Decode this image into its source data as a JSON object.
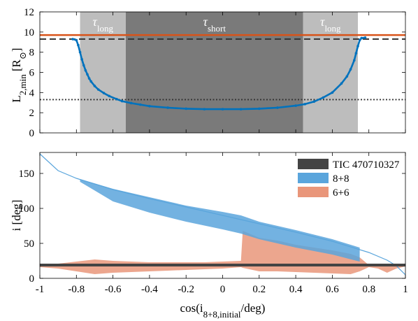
{
  "chart_data": [
    {
      "type": "line",
      "xlim": [
        -1,
        1
      ],
      "ylim": [
        0,
        12
      ],
      "ylabel_main": "L",
      "ylabel_sub": "2,min",
      "ylabel_unit_open": " [R",
      "ylabel_unit_close": "]",
      "yticks": [
        "0",
        "2",
        "4",
        "6",
        "8",
        "10",
        "12"
      ],
      "xticks_shown": false,
      "regions": [
        {
          "label_main": "τ",
          "label_sub": "long",
          "x0": -0.78,
          "x1": -0.53,
          "color": "#bdbdbd"
        },
        {
          "label_main": "τ",
          "label_sub": "short",
          "x0": -0.53,
          "x1": 0.44,
          "color": "#7a7a7a"
        },
        {
          "label_main": "τ",
          "label_sub": "long",
          "x0": 0.44,
          "x1": 0.74,
          "color": "#bdbdbd"
        }
      ],
      "reference_lines": [
        {
          "style": "solid",
          "y": 9.7,
          "color": "#d95319"
        },
        {
          "style": "dashed",
          "y": 9.3,
          "color": "#333333"
        },
        {
          "style": "dotted",
          "y": 3.3,
          "color": "#333333"
        }
      ],
      "series": [
        {
          "color": "#0072bd",
          "x": [
            -0.82,
            -0.8,
            -0.79,
            -0.78,
            -0.77,
            -0.76,
            -0.75,
            -0.74,
            -0.73,
            -0.72,
            -0.7,
            -0.68,
            -0.65,
            -0.62,
            -0.58,
            -0.55,
            -0.5,
            -0.45,
            -0.4,
            -0.3,
            -0.2,
            -0.1,
            0.0,
            0.1,
            0.2,
            0.3,
            0.4,
            0.45,
            0.5,
            0.55,
            0.6,
            0.65,
            0.68,
            0.7,
            0.72,
            0.73,
            0.74,
            0.75,
            0.76,
            0.78
          ],
          "y": [
            9.3,
            9.2,
            8.7,
            8.0,
            7.3,
            6.7,
            6.2,
            5.8,
            5.4,
            5.1,
            4.65,
            4.3,
            3.95,
            3.65,
            3.35,
            3.15,
            2.95,
            2.8,
            2.65,
            2.5,
            2.4,
            2.35,
            2.35,
            2.35,
            2.4,
            2.5,
            2.7,
            2.85,
            3.1,
            3.5,
            4.0,
            4.9,
            5.6,
            6.3,
            7.2,
            7.9,
            8.6,
            9.2,
            9.4,
            9.45
          ]
        }
      ]
    },
    {
      "type": "area",
      "xlim": [
        -1,
        1
      ],
      "ylim": [
        0,
        180
      ],
      "xlabel": "cos(i",
      "xlabel_sub": "8+8,initial",
      "xlabel_tail": "/deg)",
      "ylabel": "i [deg]",
      "xticks": [
        "-1",
        "-0.8",
        "-0.6",
        "-0.4",
        "-0.2",
        "0",
        "0.2",
        "0.4",
        "0.6",
        "0.8",
        "1"
      ],
      "yticks": [
        "0",
        "50",
        "100",
        "150"
      ],
      "legend_position": "top-right",
      "series": [
        {
          "name": "8+8",
          "color": "#5aa5dc",
          "line_x": [
            -1.0,
            -0.9,
            -0.8,
            -0.6,
            -0.4,
            -0.2,
            0.0,
            0.2,
            0.4,
            0.6,
            0.8,
            0.9,
            0.95,
            1.0
          ],
          "line_y": [
            178,
            154,
            143,
            127,
            114,
            102,
            90,
            78,
            66,
            53,
            37,
            26,
            18,
            5
          ],
          "band_x": [
            -0.78,
            -0.6,
            -0.4,
            -0.2,
            0.0,
            0.1,
            0.2,
            0.4,
            0.6,
            0.75
          ],
          "band_hi": [
            142,
            128,
            116,
            104,
            95,
            90,
            81,
            69,
            56,
            44
          ],
          "band_lo": [
            138,
            110,
            94,
            81,
            70,
            64,
            56,
            44,
            34,
            24
          ]
        },
        {
          "name": "6+6",
          "color": "#e9967a",
          "band_x": [
            -1.0,
            -0.9,
            -0.8,
            -0.7,
            -0.6,
            -0.5,
            -0.4,
            -0.3,
            -0.2,
            -0.1,
            0.0,
            0.1,
            0.11,
            0.2,
            0.3,
            0.4,
            0.5,
            0.6,
            0.7,
            0.75,
            0.8,
            0.85,
            0.9,
            0.95,
            1.0
          ],
          "band_hi": [
            20,
            21,
            24,
            27,
            25,
            24,
            23,
            23,
            23,
            23,
            24,
            25,
            68,
            58,
            54,
            48,
            44,
            40,
            35,
            30,
            19,
            19,
            20,
            20,
            20
          ],
          "band_lo": [
            16,
            14,
            10,
            6,
            8,
            9,
            10,
            11,
            12,
            13,
            14,
            16,
            15,
            10,
            10,
            9,
            8,
            7,
            6,
            10,
            16,
            14,
            8,
            14,
            17
          ]
        },
        {
          "name": "TIC 470710327",
          "color": "#444444",
          "type": "hline",
          "y": 19
        }
      ]
    }
  ]
}
